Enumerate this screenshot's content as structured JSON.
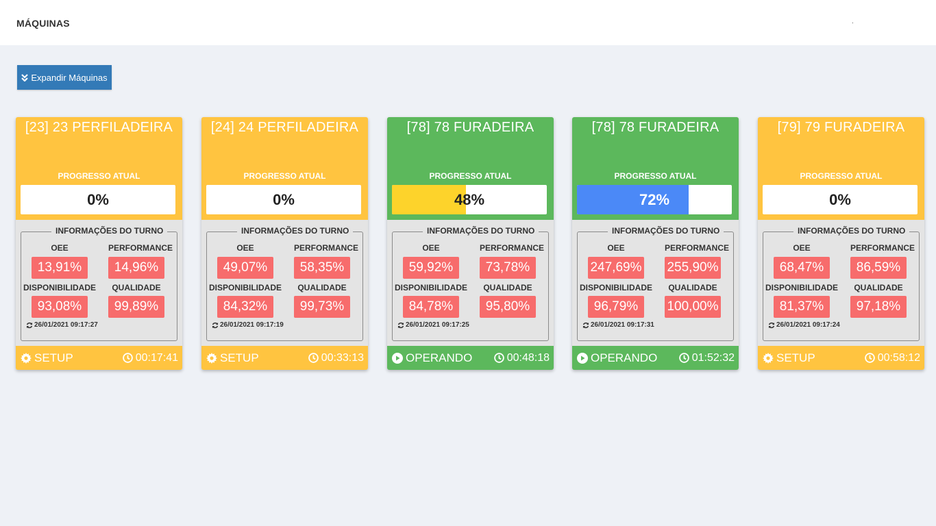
{
  "page": {
    "title": "MÁQUINAS",
    "corner_mark": "."
  },
  "toolbar": {
    "expand_label": "Expandir Máquinas"
  },
  "labels": {
    "progress": "PROGRESSO ATUAL",
    "shift_info": "INFORMAÇÕES DO TURNO",
    "oee": "OEE",
    "performance": "PERFORMANCE",
    "availability": "DISPONIBILIDADE",
    "quality": "QUALIDADE"
  },
  "colors": {
    "setup": "#ffc440",
    "operating": "#5cb85c",
    "metric_bad": "#f76c6c",
    "button": "#337ab7",
    "progress_yellow": "#fdd32b",
    "progress_blue": "#4b89f7"
  },
  "machines": [
    {
      "name": "[23] 23 PERFILADEIRA",
      "progress_text": "0%",
      "progress": 0,
      "progress_color": "#fdd32b",
      "oee": "13,91%",
      "performance": "14,96%",
      "availability": "93,08%",
      "quality": "99,89%",
      "updated": "26/01/2021 09:17:27",
      "status": "SETUP",
      "status_icon": "gear-icon",
      "timer": "00:17:41",
      "theme": "yellow"
    },
    {
      "name": "[24] 24 PERFILADEIRA",
      "progress_text": "0%",
      "progress": 0,
      "progress_color": "#fdd32b",
      "oee": "49,07%",
      "performance": "58,35%",
      "availability": "84,32%",
      "quality": "99,73%",
      "updated": "26/01/2021 09:17:19",
      "status": "SETUP",
      "status_icon": "gear-icon",
      "timer": "00:33:13",
      "theme": "yellow"
    },
    {
      "name": "[78] 78 FURADEIRA",
      "progress_text": "48%",
      "progress": 0.48,
      "progress_color": "#fdd32b",
      "oee": "59,92%",
      "performance": "73,78%",
      "availability": "84,78%",
      "quality": "95,80%",
      "updated": "26/01/2021 09:17:25",
      "status": "OPERANDO",
      "status_icon": "play-icon",
      "timer": "00:48:18",
      "theme": "green"
    },
    {
      "name": "[78] 78 FURADEIRA",
      "progress_text": "72%",
      "progress": 0.72,
      "progress_color": "#4b89f7",
      "oee": "247,69%",
      "performance": "255,90%",
      "availability": "96,79%",
      "quality": "100,00%",
      "updated": "26/01/2021 09:17:31",
      "status": "OPERANDO",
      "status_icon": "play-icon",
      "timer": "01:52:32",
      "theme": "green"
    },
    {
      "name": "[79] 79 FURADEIRA",
      "progress_text": "0%",
      "progress": 0,
      "progress_color": "#fdd32b",
      "oee": "68,47%",
      "performance": "86,59%",
      "availability": "81,37%",
      "quality": "97,18%",
      "updated": "26/01/2021 09:17:24",
      "status": "SETUP",
      "status_icon": "gear-icon",
      "timer": "00:58:12",
      "theme": "yellow"
    }
  ]
}
